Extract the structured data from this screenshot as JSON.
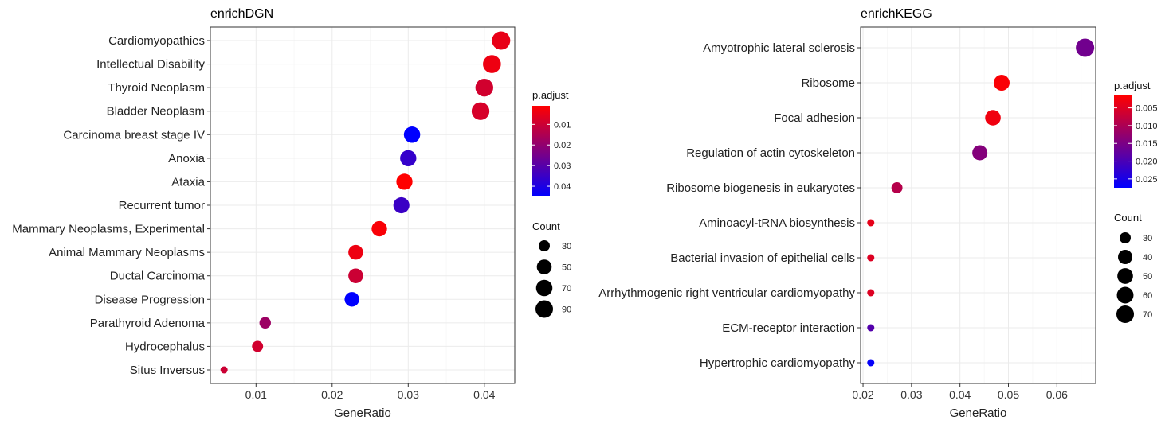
{
  "chart_data": [
    {
      "type": "scatter",
      "title": "enrichDGN",
      "xlabel": "GeneRatio",
      "ylabel": "",
      "xlim": [
        0.004,
        0.044
      ],
      "xticks": [
        0.01,
        0.02,
        0.03,
        0.04
      ],
      "xtick_labels": [
        "0.01",
        "0.02",
        "0.03",
        "0.04"
      ],
      "grid": true,
      "legend_position": "right",
      "color_legend": {
        "title": "p.adjust",
        "min": 0.001,
        "max": 0.045,
        "ticks": [
          0.01,
          0.02,
          0.03,
          0.04
        ],
        "tick_labels": [
          "0.01",
          "0.02",
          "0.03",
          "0.04"
        ],
        "low_color": "#ff0000",
        "high_color": "#0000ff"
      },
      "size_legend": {
        "title": "Count",
        "values": [
          30,
          50,
          70,
          90
        ],
        "labels": [
          "30",
          "50",
          "70",
          "90"
        ]
      },
      "points": [
        {
          "category": "Cardiomyopathies",
          "x": 0.0422,
          "count": 95,
          "p_adjust": 0.005
        },
        {
          "category": "Intellectual Disability",
          "x": 0.041,
          "count": 90,
          "p_adjust": 0.004
        },
        {
          "category": "Thyroid Neoplasm",
          "x": 0.04,
          "count": 88,
          "p_adjust": 0.009
        },
        {
          "category": "Bladder Neoplasm",
          "x": 0.0395,
          "count": 87,
          "p_adjust": 0.008
        },
        {
          "category": "Carcinoma breast stage IV",
          "x": 0.0305,
          "count": 68,
          "p_adjust": 0.045
        },
        {
          "category": "Anoxia",
          "x": 0.03,
          "count": 67,
          "p_adjust": 0.036
        },
        {
          "category": "Ataxia",
          "x": 0.0295,
          "count": 66,
          "p_adjust": 0.001
        },
        {
          "category": "Recurrent tumor",
          "x": 0.0291,
          "count": 65,
          "p_adjust": 0.035
        },
        {
          "category": "Mammary Neoplasms, Experimental",
          "x": 0.0262,
          "count": 58,
          "p_adjust": 0.002
        },
        {
          "category": "Animal Mammary Neoplasms",
          "x": 0.0231,
          "count": 51,
          "p_adjust": 0.004
        },
        {
          "category": "Ductal Carcinoma",
          "x": 0.0231,
          "count": 51,
          "p_adjust": 0.01
        },
        {
          "category": "Disease Progression",
          "x": 0.0226,
          "count": 50,
          "p_adjust": 0.045
        },
        {
          "category": "Parathyroid Adenoma",
          "x": 0.0112,
          "count": 25,
          "p_adjust": 0.018
        },
        {
          "category": "Hydrocephalus",
          "x": 0.0102,
          "count": 23,
          "p_adjust": 0.009
        },
        {
          "category": "Situs Inversus",
          "x": 0.0058,
          "count": 13,
          "p_adjust": 0.01
        }
      ]
    },
    {
      "type": "scatter",
      "title": "enrichKEGG",
      "xlabel": "GeneRatio",
      "ylabel": "",
      "xlim": [
        0.0195,
        0.068
      ],
      "xticks": [
        0.02,
        0.03,
        0.04,
        0.05,
        0.06
      ],
      "xtick_labels": [
        "0.02",
        "0.03",
        "0.04",
        "0.05",
        "0.06"
      ],
      "grid": true,
      "legend_position": "right",
      "color_legend": {
        "title": "p.adjust",
        "min": 0.0015,
        "max": 0.0275,
        "ticks": [
          0.005,
          0.01,
          0.015,
          0.02,
          0.025
        ],
        "tick_labels": [
          "0.005",
          "0.010",
          "0.015",
          "0.020",
          "0.025"
        ],
        "low_color": "#ff0000",
        "high_color": "#0000ff"
      },
      "size_legend": {
        "title": "Count",
        "values": [
          30,
          40,
          50,
          60,
          70
        ],
        "labels": [
          "30",
          "40",
          "50",
          "60",
          "70"
        ]
      },
      "points": [
        {
          "category": "Amyotrophic lateral sclerosis",
          "x": 0.0658,
          "count": 73,
          "p_adjust": 0.016
        },
        {
          "category": "Ribosome",
          "x": 0.0486,
          "count": 54,
          "p_adjust": 0.002
        },
        {
          "category": "Focal adhesion",
          "x": 0.0468,
          "count": 52,
          "p_adjust": 0.003
        },
        {
          "category": "Regulation of actin cytoskeleton",
          "x": 0.0441,
          "count": 49,
          "p_adjust": 0.014
        },
        {
          "category": "Ribosome biogenesis in eukaryotes",
          "x": 0.027,
          "count": 30,
          "p_adjust": 0.009
        },
        {
          "category": "Aminoacyl-tRNA biosynthesis",
          "x": 0.0216,
          "count": 24,
          "p_adjust": 0.004
        },
        {
          "category": "Bacterial invasion of epithelial cells",
          "x": 0.0216,
          "count": 24,
          "p_adjust": 0.005
        },
        {
          "category": "Arrhythmogenic right ventricular cardiomyopathy",
          "x": 0.0216,
          "count": 24,
          "p_adjust": 0.005
        },
        {
          "category": "ECM-receptor interaction",
          "x": 0.0216,
          "count": 24,
          "p_adjust": 0.019
        },
        {
          "category": "Hypertrophic cardiomyopathy",
          "x": 0.0216,
          "count": 24,
          "p_adjust": 0.027
        }
      ]
    }
  ]
}
